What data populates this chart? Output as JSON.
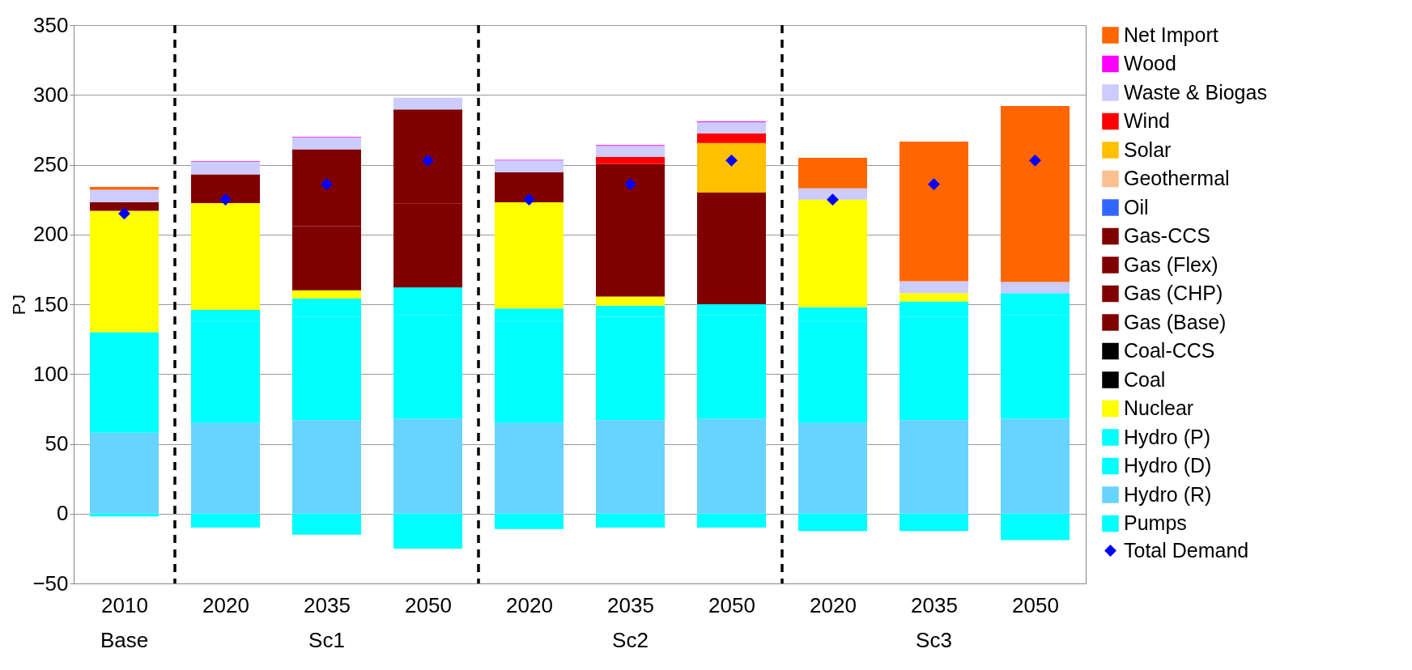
{
  "chart_data": {
    "type": "bar",
    "ylabel": "PJ",
    "stacked": true,
    "legend": "right",
    "grid": "y",
    "categories": [
      "2010",
      "2020",
      "2035",
      "2050",
      "2020",
      "2035",
      "2050",
      "2020",
      "2035",
      "2050"
    ],
    "ylim": [
      -50,
      350
    ],
    "yticks": [
      -50,
      0,
      50,
      100,
      150,
      200,
      250,
      300,
      350
    ],
    "annotations": [
      "Base",
      "Sc1",
      "Sc2",
      "Sc3"
    ],
    "series": [
      {
        "name": "Pumps",
        "color": "#00ffff",
        "values": [
          -2,
          -10,
          -15,
          -25,
          -11,
          -10,
          -10,
          -12.5,
          -12.5,
          -19
        ]
      },
      {
        "name": "Hydro (R)",
        "color": "#66d4ff",
        "values": [
          58,
          65,
          67,
          68,
          65,
          67,
          68,
          65,
          67,
          68
        ]
      },
      {
        "name": "Hydro (D)",
        "color": "#00ffff",
        "values": [
          70,
          73,
          74,
          74,
          73,
          74,
          74,
          73,
          74,
          74
        ]
      },
      {
        "name": "Hydro (P)",
        "color": "#00ffff",
        "values": [
          2,
          8,
          13,
          20,
          9,
          8,
          8,
          10,
          11,
          16
        ]
      },
      {
        "name": "Nuclear",
        "color": "#ffff00",
        "values": [
          87,
          76.5,
          6,
          null,
          76,
          6.5,
          null,
          77,
          6,
          null
        ]
      },
      {
        "name": "Coal",
        "color": "#000000",
        "values": [
          null,
          null,
          null,
          null,
          null,
          null,
          null,
          null,
          null,
          null
        ]
      },
      {
        "name": "Coal-CCS",
        "color": "#000000",
        "values": [
          null,
          null,
          null,
          null,
          null,
          null,
          null,
          null,
          null,
          null
        ]
      },
      {
        "name": "Gas (Base)",
        "color": "#800000",
        "values": [
          6,
          20.5,
          46,
          60,
          21.5,
          52.5,
          null,
          null,
          null,
          null
        ]
      },
      {
        "name": "Gas (CHP)",
        "color": "#800000",
        "values": [
          null,
          null,
          null,
          null,
          null,
          42.5,
          80,
          null,
          null,
          null
        ]
      },
      {
        "name": "Gas (Flex)",
        "color": "#800000",
        "values": [
          null,
          null,
          55,
          67.5,
          null,
          null,
          null,
          null,
          null,
          null
        ]
      },
      {
        "name": "Gas-CCS",
        "color": "#800000",
        "values": [
          null,
          null,
          null,
          null,
          null,
          null,
          null,
          null,
          null,
          null
        ]
      },
      {
        "name": "Oil",
        "color": "#3366ff",
        "values": [
          null,
          null,
          null,
          null,
          null,
          null,
          null,
          null,
          null,
          null
        ]
      },
      {
        "name": "Geothermal",
        "color": "#fac090",
        "values": [
          null,
          null,
          null,
          null,
          null,
          null,
          null,
          null,
          null,
          null
        ]
      },
      {
        "name": "Solar",
        "color": "#ffc000",
        "values": [
          null,
          null,
          null,
          null,
          null,
          null,
          35.5,
          null,
          null,
          null
        ]
      },
      {
        "name": "Wind",
        "color": "#ff0000",
        "values": [
          null,
          null,
          null,
          null,
          null,
          5,
          7,
          null,
          null,
          null
        ]
      },
      {
        "name": "Waste & Biogas",
        "color": "#ccccff",
        "values": [
          9,
          9,
          8.5,
          8.5,
          8.5,
          8,
          8,
          8,
          8.5,
          8
        ]
      },
      {
        "name": "Wood",
        "color": "#ff00ff",
        "values": [
          null,
          0.5,
          0.5,
          null,
          0.5,
          0.5,
          0.5,
          null,
          null,
          null
        ]
      },
      {
        "name": "Net Import",
        "color": "#ff6600",
        "values": [
          2,
          null,
          null,
          null,
          null,
          null,
          null,
          22,
          100,
          126
        ]
      },
      {
        "name": "Total Demand",
        "type": "scatter",
        "marker": "diamond",
        "color": "#0000ff",
        "values": [
          215,
          225,
          236,
          253,
          225,
          236,
          253,
          225,
          236,
          253
        ]
      }
    ]
  }
}
